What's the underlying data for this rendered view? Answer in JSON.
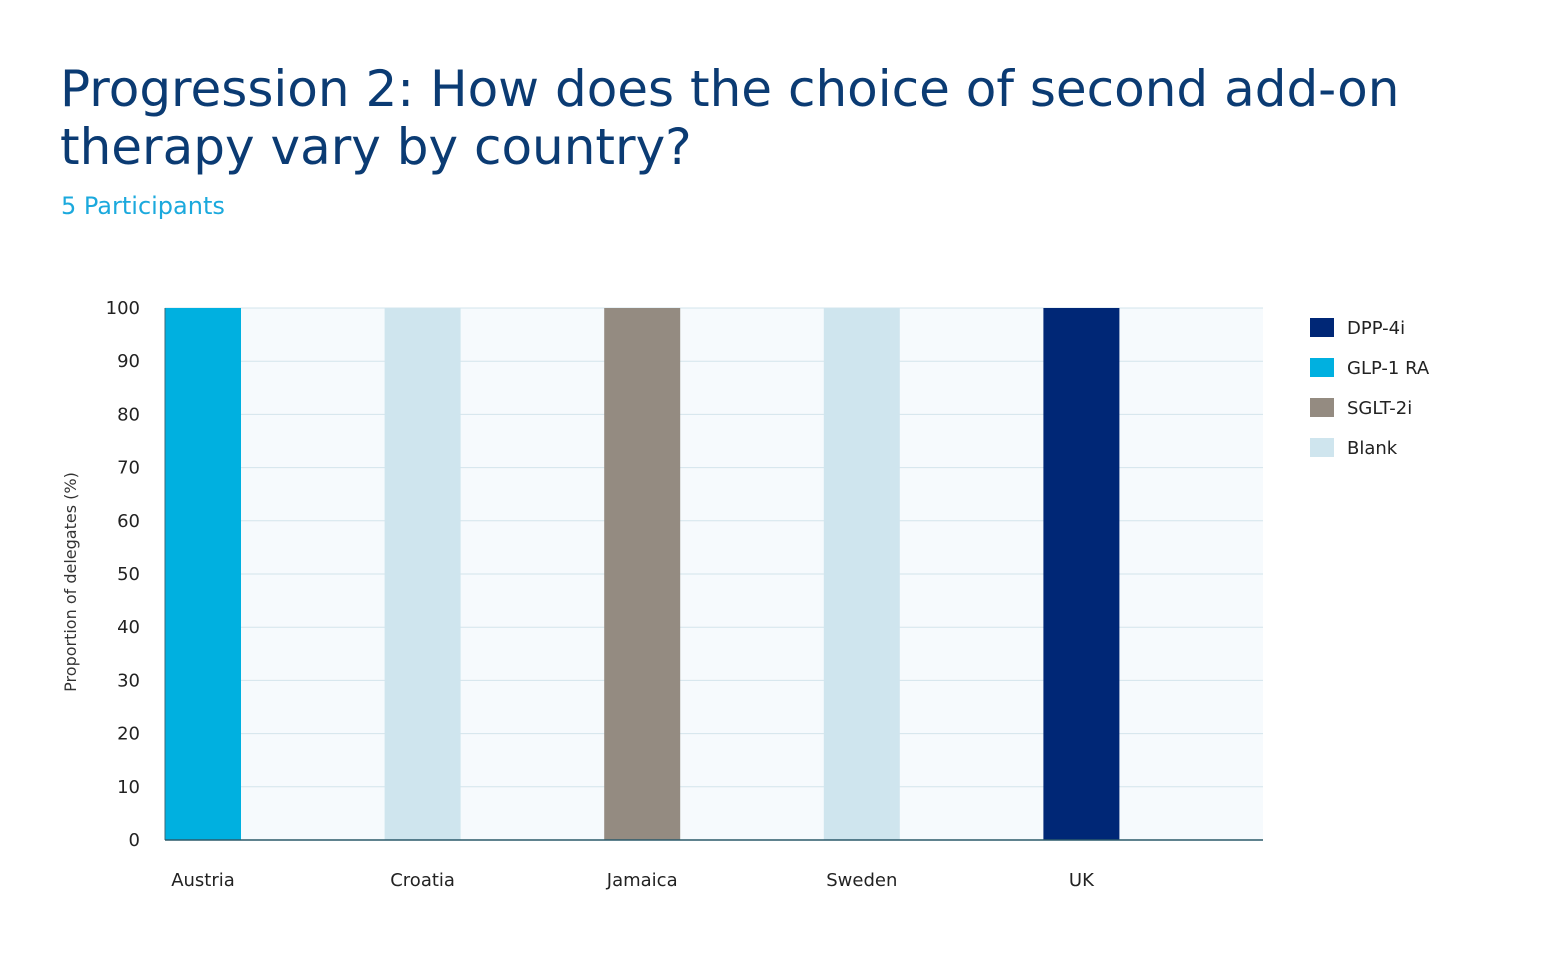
{
  "title": "Progression 2: How does the choice of second add-on therapy vary by country?",
  "subtitle": "5 Participants",
  "chart_data": {
    "type": "bar",
    "stacked": true,
    "categories": [
      "Austria",
      "Croatia",
      "Jamaica",
      "Sweden",
      "UK"
    ],
    "series": [
      {
        "name": "DPP-4i",
        "color": "#002776",
        "values": [
          0,
          0,
          0,
          0,
          100
        ]
      },
      {
        "name": "GLP-1 RA",
        "color": "#00b0e0",
        "values": [
          100,
          0,
          0,
          0,
          0
        ]
      },
      {
        "name": "SGLT-2i",
        "color": "#948b81",
        "values": [
          0,
          0,
          100,
          0,
          0
        ]
      },
      {
        "name": "Blank",
        "color": "#cfe5ee",
        "values": [
          0,
          100,
          0,
          100,
          0
        ]
      }
    ],
    "ylabel": "Proportion of delegates (%)",
    "xlabel": "",
    "ylim": [
      0,
      100
    ],
    "yticks": [
      0,
      10,
      20,
      30,
      40,
      50,
      60,
      70,
      80,
      90,
      100
    ],
    "grid": true,
    "legend_position": "right",
    "plot_background": "#f6fafd",
    "grid_color": "#d3e4ec"
  }
}
